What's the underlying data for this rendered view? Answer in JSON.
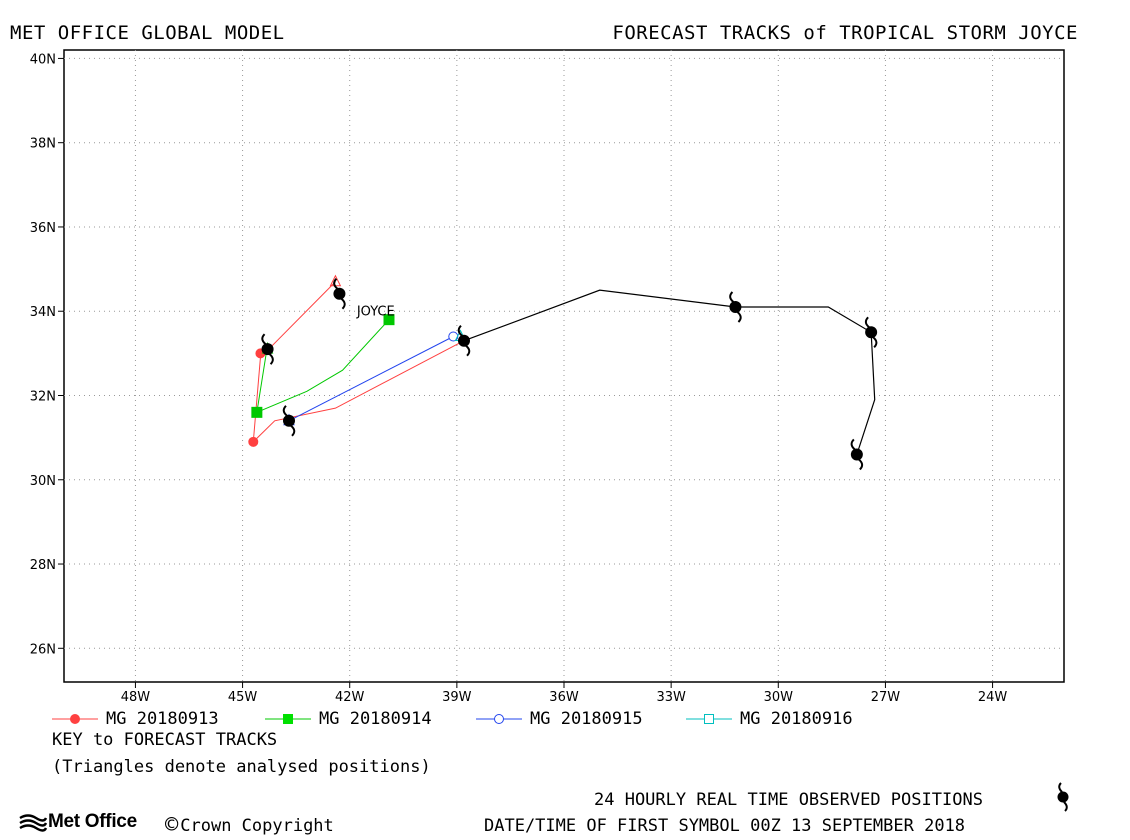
{
  "header": {
    "left": "MET OFFICE GLOBAL MODEL",
    "right": "FORECAST TRACKS of TROPICAL STORM JOYCE"
  },
  "chart_data": {
    "type": "scatter",
    "title": "FORECAST TRACKS of TROPICAL STORM JOYCE",
    "xlabel": "",
    "ylabel": "",
    "xlim": [
      -50.0,
      -22.0
    ],
    "ylim": [
      25.2,
      40.2
    ],
    "x_ticks": [
      -48,
      -45,
      -42,
      -39,
      -36,
      -33,
      -30,
      -27,
      -24
    ],
    "x_tick_labels": [
      "48W",
      "45W",
      "42W",
      "39W",
      "36W",
      "33W",
      "30W",
      "27W",
      "24W"
    ],
    "y_ticks": [
      26,
      28,
      30,
      32,
      34,
      36,
      38,
      40
    ],
    "y_tick_labels": [
      "26N",
      "28N",
      "30N",
      "32N",
      "34N",
      "36N",
      "38N",
      "40N"
    ],
    "grid": true,
    "storm_label": {
      "text": "JOYCE",
      "lon": -41.8,
      "lat": 33.9
    },
    "observed_track": {
      "name": "24 HOURLY REAL TIME OBSERVED POSITIONS",
      "color": "#000000",
      "path": [
        [
          -38.8,
          33.3
        ],
        [
          -35.0,
          34.5
        ],
        [
          -31.2,
          34.1
        ],
        [
          -28.6,
          34.1
        ],
        [
          -27.4,
          33.5
        ],
        [
          -27.3,
          31.9
        ],
        [
          -27.8,
          30.6
        ]
      ],
      "symbols": [
        [
          -38.8,
          33.3
        ],
        [
          -31.2,
          34.1
        ],
        [
          -27.4,
          33.5
        ],
        [
          -27.8,
          30.6
        ]
      ]
    },
    "series": [
      {
        "name": "MG 20180913",
        "color": "#ff4040",
        "marker": "filled-circle",
        "track": [
          [
            -38.8,
            33.3
          ],
          [
            -42.4,
            31.7
          ],
          [
            -44.1,
            31.4
          ],
          [
            -44.7,
            30.9
          ],
          [
            -44.5,
            32.9
          ],
          [
            -42.4,
            34.7
          ]
        ],
        "markers": [
          [
            -44.7,
            30.9
          ],
          [
            -44.5,
            33.0
          ]
        ],
        "analysed": [
          -42.4,
          34.7
        ]
      },
      {
        "name": "MG 20180914",
        "color": "#00c800",
        "marker": "filled-square",
        "track": [
          [
            -40.9,
            33.8
          ],
          [
            -42.2,
            32.6
          ],
          [
            -43.2,
            32.1
          ],
          [
            -44.6,
            31.6
          ],
          [
            -44.3,
            33.2
          ],
          [
            -44.3,
            33.1
          ]
        ],
        "markers": [
          [
            -44.6,
            31.6
          ],
          [
            -40.9,
            33.8
          ]
        ],
        "analysed": [
          -44.3,
          33.1
        ]
      },
      {
        "name": "MG 20180915",
        "color": "#2244ee",
        "marker": "open-circle",
        "track": [
          [
            -39.1,
            33.4
          ],
          [
            -43.7,
            31.4
          ]
        ],
        "markers": [
          [
            -39.1,
            33.4
          ]
        ],
        "analysed": [
          -43.7,
          31.4
        ]
      },
      {
        "name": "MG 20180916",
        "color": "#00bfbf",
        "marker": "open-square",
        "track": [
          [
            -38.9,
            33.4
          ]
        ],
        "markers": [],
        "analysed": [
          -38.9,
          33.4
        ]
      }
    ]
  },
  "legend": {
    "items": [
      "MG 20180913",
      "MG 20180914",
      "MG 20180915",
      "MG 20180916"
    ]
  },
  "key": {
    "title": "KEY to FORECAST TRACKS",
    "subtitle": "(Triangles denote analysed positions)"
  },
  "footer": {
    "logo": "Met Office",
    "copyright": "Crown Copyright",
    "observed_label": "24 HOURLY REAL TIME OBSERVED POSITIONS",
    "first_symbol": "DATE/TIME OF FIRST SYMBOL 00Z 13 SEPTEMBER 2018"
  }
}
